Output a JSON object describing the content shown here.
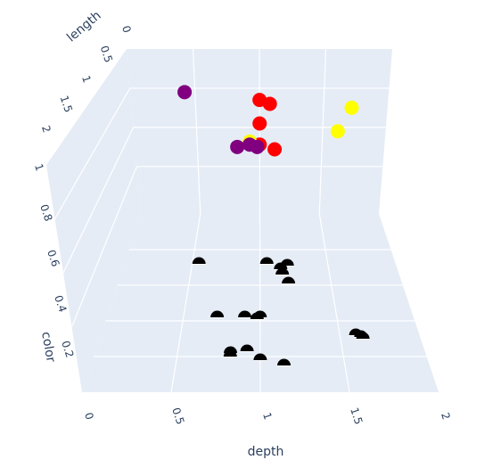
{
  "chart_data": {
    "type": "scatter3d",
    "axes": {
      "x": {
        "label": "depth",
        "range": [
          0,
          2
        ],
        "ticks": [
          "0",
          "0.5",
          "1",
          "1.5",
          "2"
        ]
      },
      "y": {
        "label": "color",
        "range": [
          0,
          1
        ],
        "ticks": [
          "0.2",
          "0.4",
          "0.6",
          "0.8",
          "1"
        ]
      },
      "z": {
        "label": "length",
        "range": [
          0,
          2
        ],
        "ticks": [
          "0",
          "0.5",
          "1",
          "1.5",
          "2"
        ]
      }
    },
    "grid": true,
    "background_color": "#e5ecf6",
    "grid_color": "#ffffff",
    "marker_colors": {
      "purple": "#800080",
      "red": "#ff0000",
      "yellow": "#ffff00",
      "black": "#000000"
    },
    "points_upper": [
      {
        "depth": 0.42,
        "color": 0.95,
        "length": 0.55,
        "marker": "circle",
        "fill": "#800080"
      },
      {
        "depth": 1.0,
        "color": 0.95,
        "length": 0.65,
        "marker": "circle",
        "fill": "#ff0000"
      },
      {
        "depth": 1.08,
        "color": 0.95,
        "length": 0.7,
        "marker": "circle",
        "fill": "#ff0000"
      },
      {
        "depth": 1.0,
        "color": 0.95,
        "length": 0.95,
        "marker": "circle",
        "fill": "#ff0000"
      },
      {
        "depth": 1.0,
        "color": 0.95,
        "length": 1.22,
        "marker": "circle",
        "fill": "#ff0000"
      },
      {
        "depth": 0.92,
        "color": 0.95,
        "length": 1.18,
        "marker": "circle",
        "fill": "#ffff00"
      },
      {
        "depth": 1.12,
        "color": 0.95,
        "length": 1.28,
        "marker": "circle",
        "fill": "#ff0000"
      },
      {
        "depth": 0.82,
        "color": 0.95,
        "length": 1.25,
        "marker": "circle",
        "fill": "#800080"
      },
      {
        "depth": 0.92,
        "color": 0.95,
        "length": 1.22,
        "marker": "circle",
        "fill": "#800080"
      },
      {
        "depth": 0.98,
        "color": 0.95,
        "length": 1.25,
        "marker": "circle",
        "fill": "#800080"
      },
      {
        "depth": 1.72,
        "color": 0.95,
        "length": 0.75,
        "marker": "circle",
        "fill": "#ffff00"
      },
      {
        "depth": 1.62,
        "color": 0.95,
        "length": 1.05,
        "marker": "circle",
        "fill": "#ffff00"
      }
    ],
    "points_lower": [
      {
        "depth": 0.55,
        "color": 0.72,
        "marker": "half-circle",
        "fill": "#000000"
      },
      {
        "depth": 1.05,
        "color": 0.72,
        "marker": "half-circle",
        "fill": "#000000"
      },
      {
        "depth": 1.2,
        "color": 0.71,
        "marker": "half-circle",
        "fill": "#000000"
      },
      {
        "depth": 1.15,
        "color": 0.69,
        "marker": "half-circle",
        "fill": "#000000"
      },
      {
        "depth": 1.16,
        "color": 0.66,
        "marker": "half-circle",
        "fill": "#000000"
      },
      {
        "depth": 1.2,
        "color": 0.61,
        "marker": "half-circle",
        "fill": "#000000"
      },
      {
        "depth": 0.72,
        "color": 0.42,
        "marker": "half-circle",
        "fill": "#000000"
      },
      {
        "depth": 0.9,
        "color": 0.42,
        "marker": "half-circle",
        "fill": "#000000"
      },
      {
        "depth": 1.0,
        "color": 0.42,
        "marker": "half-circle",
        "fill": "#000000"
      },
      {
        "depth": 0.98,
        "color": 0.41,
        "marker": "half-circle",
        "fill": "#000000"
      },
      {
        "depth": 1.6,
        "color": 0.32,
        "marker": "half-circle",
        "fill": "#000000"
      },
      {
        "depth": 1.63,
        "color": 0.31,
        "marker": "half-circle",
        "fill": "#000000"
      },
      {
        "depth": 1.64,
        "color": 0.3,
        "marker": "half-circle",
        "fill": "#000000"
      },
      {
        "depth": 0.82,
        "color": 0.22,
        "marker": "half-circle",
        "fill": "#000000"
      },
      {
        "depth": 0.92,
        "color": 0.23,
        "marker": "half-circle",
        "fill": "#000000"
      },
      {
        "depth": 0.82,
        "color": 0.2,
        "marker": "half-circle",
        "fill": "#000000"
      },
      {
        "depth": 1.0,
        "color": 0.18,
        "marker": "half-circle",
        "fill": "#000000"
      },
      {
        "depth": 1.14,
        "color": 0.15,
        "marker": "half-circle",
        "fill": "#000000"
      }
    ]
  }
}
